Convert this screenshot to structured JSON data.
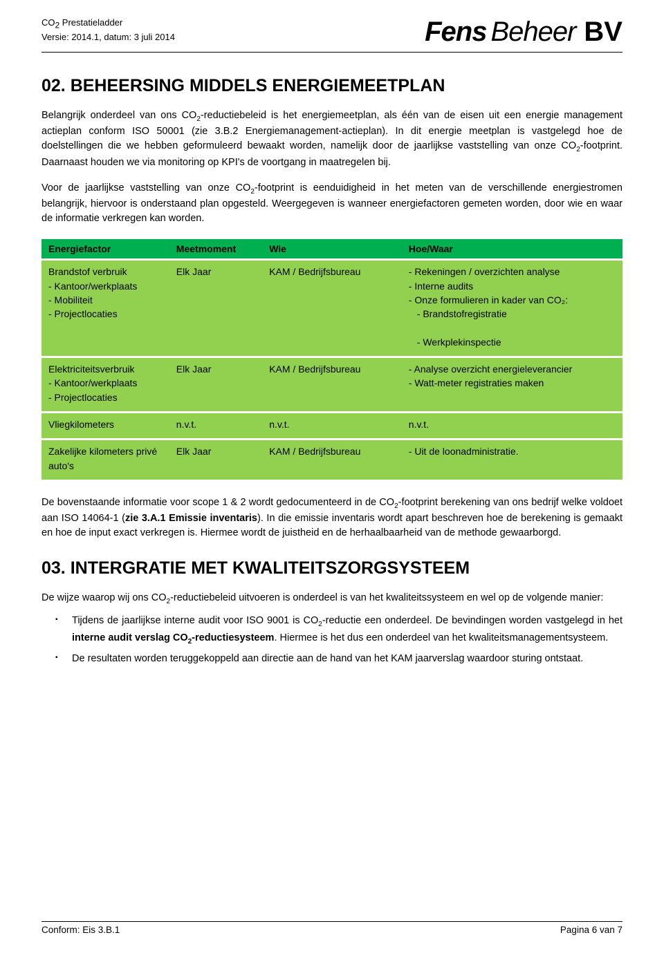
{
  "header": {
    "line1_pre": "CO",
    "line1_sub": "2",
    "line1_post": " Prestatieladder",
    "line2": "Versie: 2014.1, datum: 3 juli 2014",
    "logo_fens": "Fens",
    "logo_beheer": "Beheer",
    "logo_bv": "BV"
  },
  "section02": {
    "title": "02. BEHEERSING MIDDELS ENERGIEMEETPLAN",
    "p1_a": "Belangrijk onderdeel van ons CO",
    "p1_sub1": "2",
    "p1_b": "-reductiebeleid is het energiemeetplan, als één van de eisen uit een energie management actieplan conform ISO 50001 (zie 3.B.2 Energiemanagement-actieplan). In dit energie meetplan is vastgelegd hoe de doelstellingen die we hebben geformuleerd bewaakt worden, namelijk door de jaarlijkse vaststelling van onze CO",
    "p1_sub2": "2",
    "p1_c": "-footprint. Daarnaast houden we via monitoring op KPI's de voortgang in maatregelen bij.",
    "p2_a": "Voor de jaarlijkse vaststelling van onze CO",
    "p2_sub": "2",
    "p2_b": "-footprint is eenduidigheid in het meten van de verschillende energiestromen belangrijk, hiervoor is onderstaand plan opgesteld. Weergegeven is wanneer energiefactoren gemeten worden, door wie en waar de informatie verkregen kan worden."
  },
  "table": {
    "headers": [
      "Energiefactor",
      "Meetmoment",
      "Wie",
      "Hoe/Waar"
    ],
    "rows": [
      {
        "c1": "Brandstof verbruik\n- Kantoor/werkplaats\n- Mobiliteit\n- Projectlocaties",
        "c2": "Elk Jaar",
        "c3": "KAM / Bedrijfsbureau",
        "c4_lines": [
          "- Rekeningen / overzichten analyse",
          "- Interne audits",
          "- Onze formulieren in kader van CO₂:",
          "  - Brandstofregistratie",
          "  - Werkplekinspectie"
        ]
      },
      {
        "c1": "Elektriciteitsverbruik\n- Kantoor/werkplaats\n- Projectlocaties",
        "c2": "Elk Jaar",
        "c3": "KAM / Bedrijfsbureau",
        "c4_lines": [
          "- Analyse overzicht energieleverancier",
          "- Watt-meter registraties maken"
        ]
      },
      {
        "c1": "Vliegkilometers",
        "c2": "n.v.t.",
        "c3": "n.v.t.",
        "c4_lines": [
          "n.v.t."
        ]
      },
      {
        "c1": "Zakelijke kilometers privé auto's",
        "c2": "Elk Jaar",
        "c3": "KAM / Bedrijfsbureau",
        "c4_lines": [
          "- Uit de loonadministratie."
        ]
      }
    ]
  },
  "section02_after": {
    "p_a": "De bovenstaande informatie voor scope 1 & 2 wordt gedocumenteerd in de CO",
    "p_sub": "2",
    "p_b": "-footprint berekening van ons bedrijf welke voldoet aan ISO 14064-1 (",
    "p_bold": "zie 3.A.1 Emissie inventaris",
    "p_c": "). In die emissie inventaris wordt apart beschreven hoe de berekening is gemaakt en hoe de input exact verkregen is. Hiermee wordt de juistheid en de herhaalbaarheid van de methode gewaarborgd."
  },
  "section03": {
    "title": "03. INTERGRATIE MET KWALITEITSZORGSYSTEEM",
    "p_a": "De wijze waarop wij ons CO",
    "p_sub": "2",
    "p_b": "-reductiebeleid uitvoeren is onderdeel is van het kwaliteitssysteem en wel op de volgende manier:",
    "b1_a": "Tijdens de jaarlijkse interne audit voor ISO 9001 is CO",
    "b1_sub": "2",
    "b1_b": "-reductie een onderdeel. De bevindingen worden vastgelegd in het ",
    "b1_bold_a": "interne audit verslag CO",
    "b1_bold_sub": "2",
    "b1_bold_b": "-reductiesysteem",
    "b1_c": ". Hiermee is het dus een onderdeel van het kwaliteitsmanagementsysteem.",
    "b2": "De resultaten worden teruggekoppeld aan directie aan de hand van het KAM jaarverslag waardoor sturing ontstaat."
  },
  "footer": {
    "left": "Conform: Eis 3.B.1",
    "right": "Pagina 6 van 7"
  },
  "colors": {
    "header_row": "#00b050",
    "body_row": "#92d050",
    "text": "#000000",
    "background": "#ffffff"
  }
}
